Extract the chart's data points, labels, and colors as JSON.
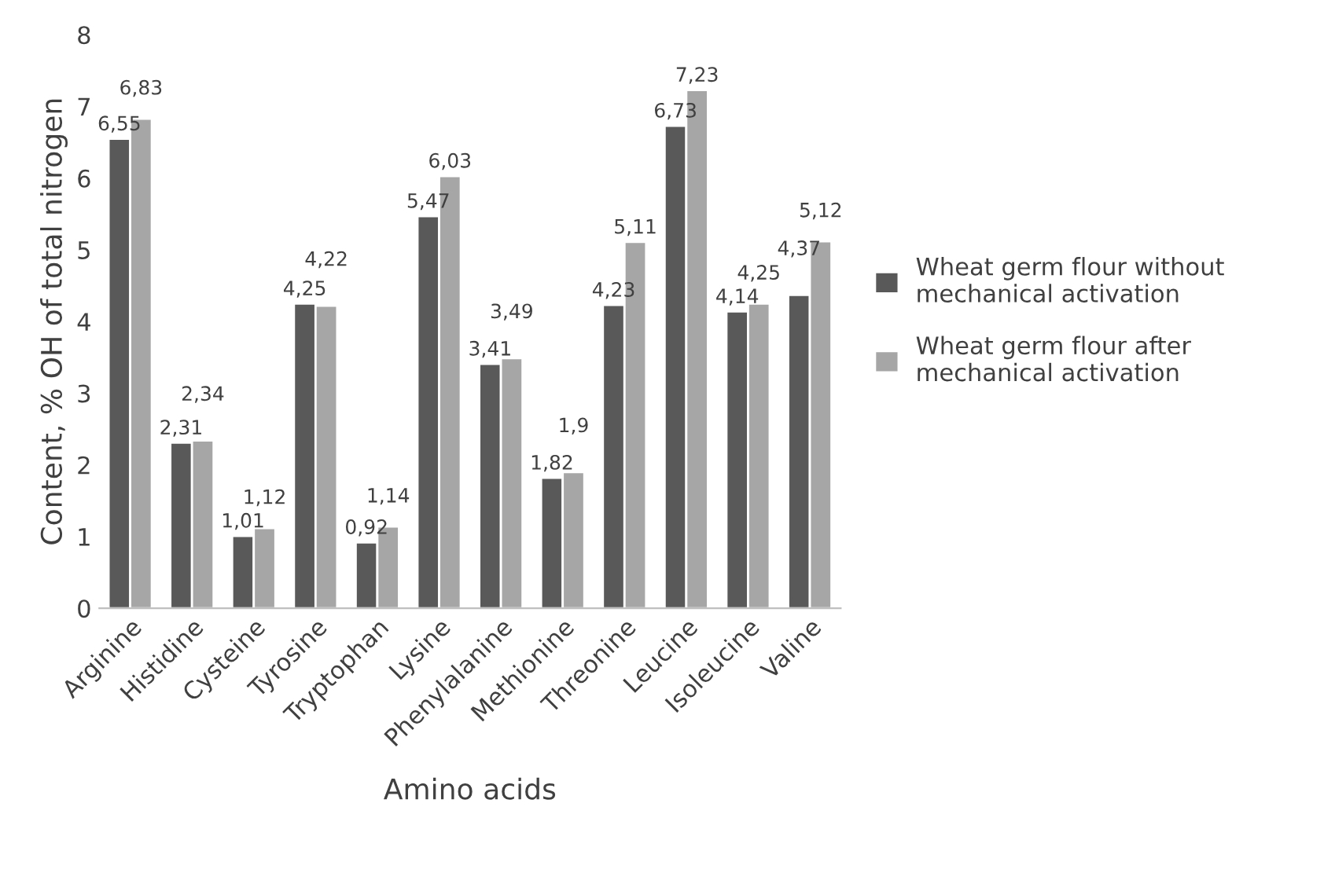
{
  "chart_data": {
    "type": "bar",
    "xlabel": "Amino acids",
    "ylabel": "Content, % OH of total nitrogen",
    "categories": [
      "Arginine",
      "Histidine",
      "Cysteine",
      "Tyrosine",
      "Tryptophan",
      "Lysine",
      "Phenylalanine",
      "Methionine",
      "Threonine",
      "Leucine",
      "Isoleucine",
      "Valine"
    ],
    "series": [
      {
        "name": "Wheat germ flour without mechanical activation",
        "color": "#595959",
        "values": [
          6.55,
          2.31,
          1.01,
          4.25,
          0.92,
          5.47,
          3.41,
          1.82,
          4.23,
          6.73,
          4.14,
          4.37
        ],
        "value_labels": [
          "6,55",
          "2,31",
          "1,01",
          "4,25",
          "0,92",
          "5,47",
          "3,41",
          "1,82",
          "4,23",
          "6,73",
          "4,14",
          "4,37"
        ]
      },
      {
        "name": "Wheat germ flour after mechanical activation",
        "color": "#a6a6a6",
        "values": [
          6.83,
          2.34,
          1.12,
          4.22,
          1.14,
          6.03,
          3.49,
          1.9,
          5.11,
          7.23,
          4.25,
          5.12
        ],
        "value_labels": [
          "6,83",
          "2,34",
          "1,12",
          "4,22",
          "1,14",
          "6,03",
          "3,49",
          "1,9",
          "5,11",
          "7,23",
          "4,25",
          "5,12"
        ]
      }
    ],
    "ylim": [
      0,
      8
    ],
    "yticks": [
      0,
      1,
      2,
      3,
      4,
      5,
      6,
      7,
      8
    ],
    "legend": "right"
  }
}
